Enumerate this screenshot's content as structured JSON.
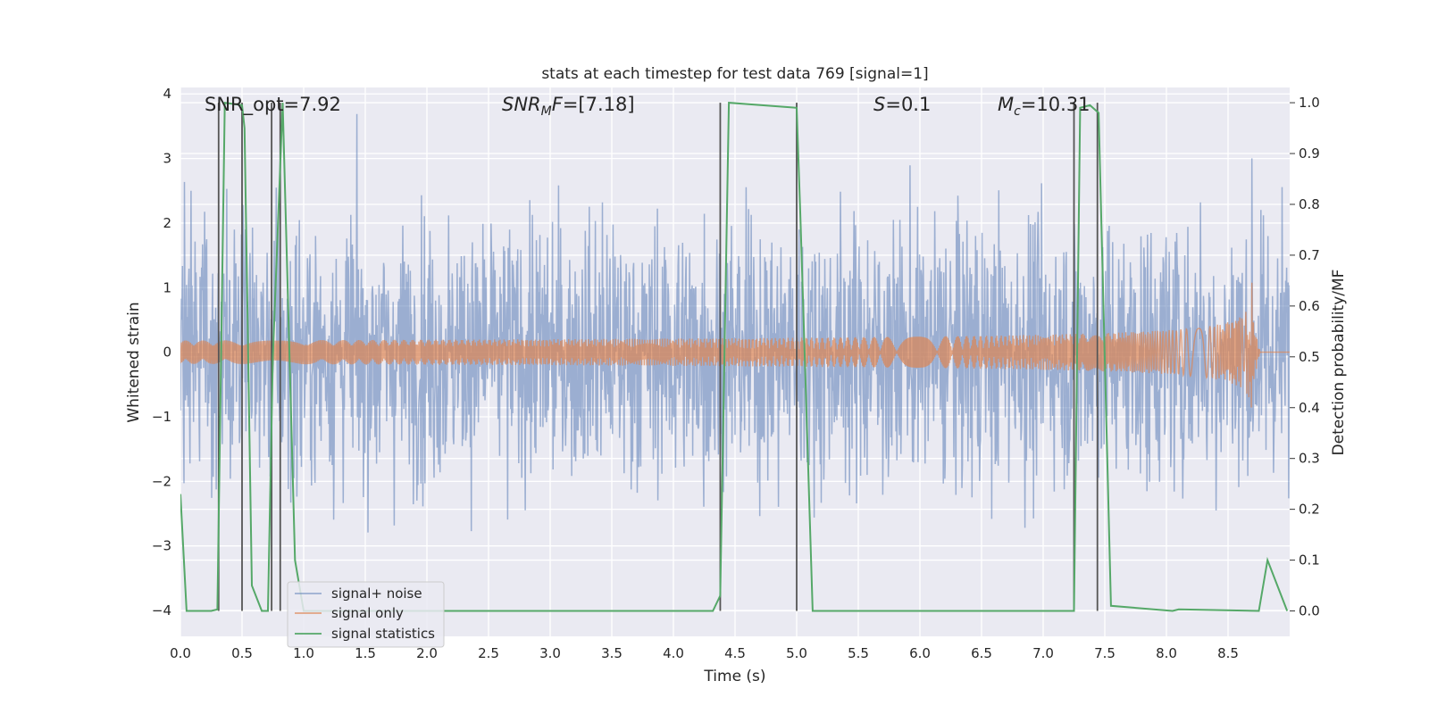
{
  "chart_data": {
    "type": "line",
    "title": "stats at each timestep for test data 769 [signal=1]",
    "xlabel": "Time (s)",
    "ylabel_left": "Whitened strain",
    "ylabel_right": "Detection probability/MF",
    "xlim": [
      0,
      9
    ],
    "ylim_left": [
      -4.4,
      4.1
    ],
    "ylim_right": [
      -0.05,
      1.03
    ],
    "x_ticks": [
      "0.0",
      "0.5",
      "1.0",
      "1.5",
      "2.0",
      "2.5",
      "3.0",
      "3.5",
      "4.0",
      "4.5",
      "5.0",
      "5.5",
      "6.0",
      "6.5",
      "7.0",
      "7.5",
      "8.0",
      "8.5"
    ],
    "y_ticks_left": [
      "4",
      "3",
      "2",
      "1",
      "0",
      "−1",
      "−2",
      "−3",
      "−4"
    ],
    "y_ticks_right": [
      "1.0",
      "0.9",
      "0.8",
      "0.7",
      "0.6",
      "0.5",
      "0.4",
      "0.3",
      "0.2",
      "0.1",
      "0.0"
    ],
    "grid": true,
    "legend_placement": "lower-left",
    "annotations": [
      {
        "id": "snr_opt",
        "text": "SNR_opt=7.92",
        "x": 0.2
      },
      {
        "id": "snr_mf",
        "text": "SNR_MF=[7.18]",
        "x": 2.6
      },
      {
        "id": "s_val",
        "text": "S=0.1",
        "x": 5.6
      },
      {
        "id": "mc",
        "text": "M_c=10.31",
        "x": 6.6
      }
    ],
    "series": [
      {
        "name": "signal+ noise",
        "axis": "left",
        "color": "#4c72b0",
        "opacity": 0.5,
        "description": "whitened noisy strain, approx. gaussian, std ~1, spanning roughly -3.6 to 3.7",
        "noise_std": 1.0,
        "approx_range": [
          -3.6,
          3.7
        ]
      },
      {
        "name": "signal only",
        "axis": "left",
        "color": "#dd8452",
        "opacity": 0.7,
        "description": "chirp signal growing in amplitude until merger near t=8.7 s",
        "merger_time": 8.7,
        "peak_amplitude": 1.3
      },
      {
        "name": "signal statistics",
        "axis": "right",
        "color": "#55a868",
        "x": [
          0.0,
          0.05,
          0.15,
          0.25,
          0.3,
          0.36,
          0.5,
          0.52,
          0.58,
          0.66,
          0.71,
          0.75,
          0.83,
          0.93,
          1.0,
          4.32,
          4.38,
          4.45,
          5.0,
          5.03,
          5.13,
          7.25,
          7.3,
          7.38,
          7.45,
          7.55,
          8.05,
          8.1,
          8.75,
          8.82,
          8.98
        ],
        "y": [
          0.23,
          0.0,
          0.0,
          0.0,
          0.003,
          1.0,
          0.995,
          0.95,
          0.05,
          0.0,
          0.0,
          0.5,
          1.0,
          0.1,
          0.0,
          0.0,
          0.03,
          1.0,
          0.99,
          0.78,
          0.0,
          0.0,
          0.99,
          0.995,
          0.98,
          0.01,
          0.0,
          0.003,
          0.0,
          0.1,
          0.0
        ]
      }
    ],
    "vertical_markers": {
      "color": "#555555",
      "x": [
        0.31,
        0.5,
        0.74,
        0.81,
        4.38,
        5.0,
        7.25,
        7.44
      ]
    }
  }
}
